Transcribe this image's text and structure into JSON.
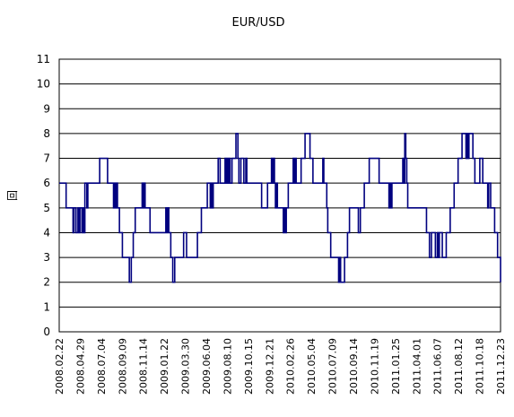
{
  "chart_data": {
    "type": "line",
    "title": "EUR/USD",
    "xlabel": "",
    "ylabel": "回",
    "ylim": [
      0,
      11
    ],
    "y_ticks": [
      "0",
      "1",
      "2",
      "3",
      "4",
      "5",
      "6",
      "7",
      "8",
      "9",
      "10",
      "11"
    ],
    "grid": true,
    "legend": "none",
    "x_tick_labels": [
      "2008.02.22",
      "2008.04.29",
      "2008.07.04",
      "2008.09.09",
      "2008.11.14",
      "2009.01.22",
      "2009.03.30",
      "2009.06.04",
      "2009.08.10",
      "2009.10.15",
      "2009.12.21",
      "2010.02.26",
      "2010.05.04",
      "2010.07.09",
      "2010.09.14",
      "2010.11.19",
      "2011.01.25",
      "2011.04.01",
      "2011.06.07",
      "2011.08.12",
      "2011.10.18",
      "2011.12.23"
    ],
    "series": [
      {
        "color": "#00007f",
        "values": [
          6,
          6,
          6,
          6,
          6,
          6,
          6,
          5,
          5,
          5,
          5,
          5,
          5,
          5,
          4,
          5,
          5,
          4,
          4,
          5,
          4,
          5,
          5,
          4,
          5,
          4,
          6,
          6,
          5,
          6,
          6,
          6,
          6,
          6,
          6,
          6,
          6,
          6,
          6,
          6,
          6,
          7,
          7,
          7,
          7,
          7,
          7,
          7,
          7,
          6,
          6,
          6,
          6,
          6,
          6,
          5,
          6,
          5,
          6,
          5,
          5,
          4,
          4,
          4,
          3,
          3,
          3,
          3,
          3,
          3,
          3,
          2,
          2,
          3,
          3,
          4,
          4,
          5,
          5,
          5,
          5,
          5,
          5,
          5,
          6,
          5,
          6,
          5,
          5,
          5,
          5,
          5,
          4,
          4,
          4,
          4,
          4,
          4,
          4,
          4,
          4,
          4,
          4,
          4,
          4,
          4,
          4,
          4,
          5,
          4,
          5,
          4,
          4,
          3,
          3,
          2,
          2,
          3,
          3,
          3,
          3,
          3,
          3,
          3,
          3,
          3,
          4,
          4,
          4,
          3,
          3,
          3,
          3,
          3,
          3,
          3,
          3,
          3,
          3,
          3,
          4,
          4,
          4,
          4,
          5,
          5,
          5,
          5,
          5,
          5,
          6,
          6,
          6,
          5,
          6,
          5,
          6,
          6,
          6,
          6,
          6,
          7,
          7,
          6,
          6,
          6,
          6,
          6,
          7,
          6,
          7,
          6,
          7,
          6,
          6,
          7,
          7,
          7,
          7,
          8,
          8,
          7,
          6,
          6,
          7,
          7,
          7,
          6,
          6,
          7,
          6,
          6,
          6,
          6,
          6,
          6,
          6,
          6,
          6,
          6,
          6,
          6,
          6,
          6,
          6,
          5,
          5,
          5,
          5,
          5,
          5,
          6,
          6,
          6,
          6,
          7,
          6,
          7,
          6,
          5,
          6,
          5,
          5,
          5,
          5,
          5,
          5,
          4,
          5,
          4,
          5,
          5,
          6,
          6,
          6,
          6,
          6,
          7,
          6,
          7,
          6,
          6,
          6,
          6,
          6,
          7,
          7,
          7,
          7,
          8,
          8,
          8,
          8,
          8,
          7,
          7,
          7,
          6,
          6,
          6,
          6,
          6,
          6,
          6,
          6,
          6,
          6,
          7,
          6,
          6,
          6,
          5,
          4,
          4,
          4,
          3,
          3,
          3,
          3,
          3,
          3,
          3,
          3,
          2,
          3,
          2,
          2,
          2,
          2,
          3,
          3,
          3,
          4,
          4,
          5,
          5,
          5,
          5,
          5,
          5,
          5,
          5,
          5,
          4,
          4,
          5,
          5,
          5,
          5,
          6,
          6,
          6,
          6,
          6,
          7,
          7,
          7,
          7,
          7,
          7,
          7,
          7,
          7,
          7,
          6,
          6,
          6,
          6,
          6,
          6,
          6,
          6,
          6,
          6,
          5,
          6,
          5,
          6,
          6,
          6,
          6,
          6,
          6,
          6,
          6,
          6,
          6,
          6,
          7,
          6,
          8,
          7,
          6,
          5,
          5,
          5,
          5,
          5,
          5,
          5,
          5,
          5,
          5,
          5,
          5,
          5,
          5,
          5,
          5,
          5,
          5,
          5,
          4,
          4,
          4,
          3,
          3,
          4,
          4,
          4,
          4,
          3,
          3,
          4,
          3,
          4,
          4,
          4,
          3,
          3,
          3,
          3,
          4,
          4,
          4,
          4,
          5,
          5,
          5,
          5,
          6,
          6,
          6,
          6,
          7,
          7,
          7,
          7,
          8,
          8,
          8,
          8,
          7,
          8,
          7,
          8,
          8,
          8,
          8,
          7,
          7,
          6,
          6,
          6,
          6,
          6,
          7,
          7,
          7,
          6,
          6,
          6,
          6,
          6,
          5,
          6,
          6,
          5,
          5,
          5,
          5,
          4,
          4,
          4,
          3,
          3,
          3,
          2
        ]
      }
    ]
  }
}
